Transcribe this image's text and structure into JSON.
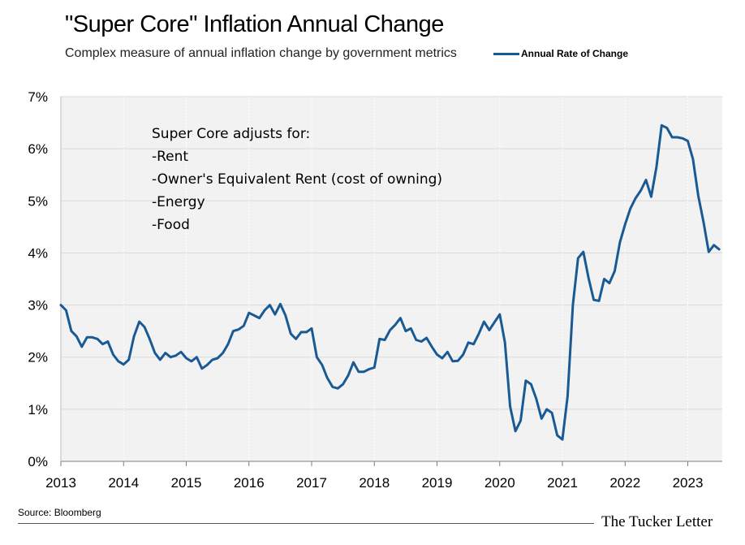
{
  "chart_data": {
    "type": "line",
    "title": "\"Super Core\" Inflation Annual Change",
    "subtitle": "Complex measure of annual inflation change by government metrics",
    "xlabel": "",
    "ylabel": "",
    "ylim": [
      0,
      7
    ],
    "xlim": [
      2013.0,
      2023.55
    ],
    "grid": true,
    "legend_position": "top-right",
    "x_ticks": [
      2013,
      2014,
      2015,
      2016,
      2017,
      2018,
      2019,
      2020,
      2021,
      2022,
      2023
    ],
    "x_tick_labels": [
      "2013",
      "2014",
      "2015",
      "2016",
      "2017",
      "2018",
      "2019",
      "2020",
      "2021",
      "2022",
      "2023"
    ],
    "y_ticks": [
      0,
      1,
      2,
      3,
      4,
      5,
      6,
      7
    ],
    "y_tick_labels": [
      "0%",
      "1%",
      "2%",
      "3%",
      "4%",
      "5%",
      "6%",
      "7%"
    ],
    "annotations": [
      "Super Core adjusts for:",
      "-Rent",
      "-Owner's Equivalent Rent (cost of owning)",
      "-Energy",
      "-Food"
    ],
    "series": [
      {
        "name": "Annual Rate of Change",
        "color": "#1a5a94",
        "start": 2013.0,
        "step": 0.0833333,
        "values": [
          3.0,
          2.9,
          2.5,
          2.4,
          2.2,
          2.38,
          2.38,
          2.35,
          2.25,
          2.3,
          2.05,
          1.92,
          1.86,
          1.95,
          2.4,
          2.68,
          2.58,
          2.35,
          2.08,
          1.95,
          2.08,
          2.0,
          2.03,
          2.1,
          1.98,
          1.92,
          2.0,
          1.78,
          1.85,
          1.95,
          1.98,
          2.08,
          2.25,
          2.5,
          2.53,
          2.6,
          2.85,
          2.8,
          2.75,
          2.9,
          3.0,
          2.82,
          3.02,
          2.8,
          2.45,
          2.35,
          2.48,
          2.48,
          2.55,
          2.0,
          1.85,
          1.6,
          1.43,
          1.4,
          1.48,
          1.65,
          1.9,
          1.72,
          1.72,
          1.77,
          1.8,
          2.35,
          2.33,
          2.52,
          2.62,
          2.75,
          2.5,
          2.55,
          2.33,
          2.3,
          2.37,
          2.2,
          2.05,
          1.98,
          2.1,
          1.92,
          1.93,
          2.05,
          2.28,
          2.25,
          2.45,
          2.68,
          2.52,
          2.67,
          2.82,
          2.28,
          1.05,
          0.58,
          0.78,
          1.55,
          1.48,
          1.2,
          0.82,
          1.0,
          0.93,
          0.5,
          0.42,
          1.25,
          3.0,
          3.9,
          4.02,
          3.52,
          3.1,
          3.08,
          3.5,
          3.42,
          3.65,
          4.2,
          4.55,
          4.85,
          5.05,
          5.2,
          5.4,
          5.08,
          5.65,
          6.45,
          6.4,
          6.22,
          6.22,
          6.2,
          6.15,
          5.8,
          5.1,
          4.6,
          4.02,
          4.15,
          4.07
        ]
      }
    ]
  },
  "footer": {
    "source": "Source: Bloomberg",
    "brand": "The Tucker Letter"
  }
}
